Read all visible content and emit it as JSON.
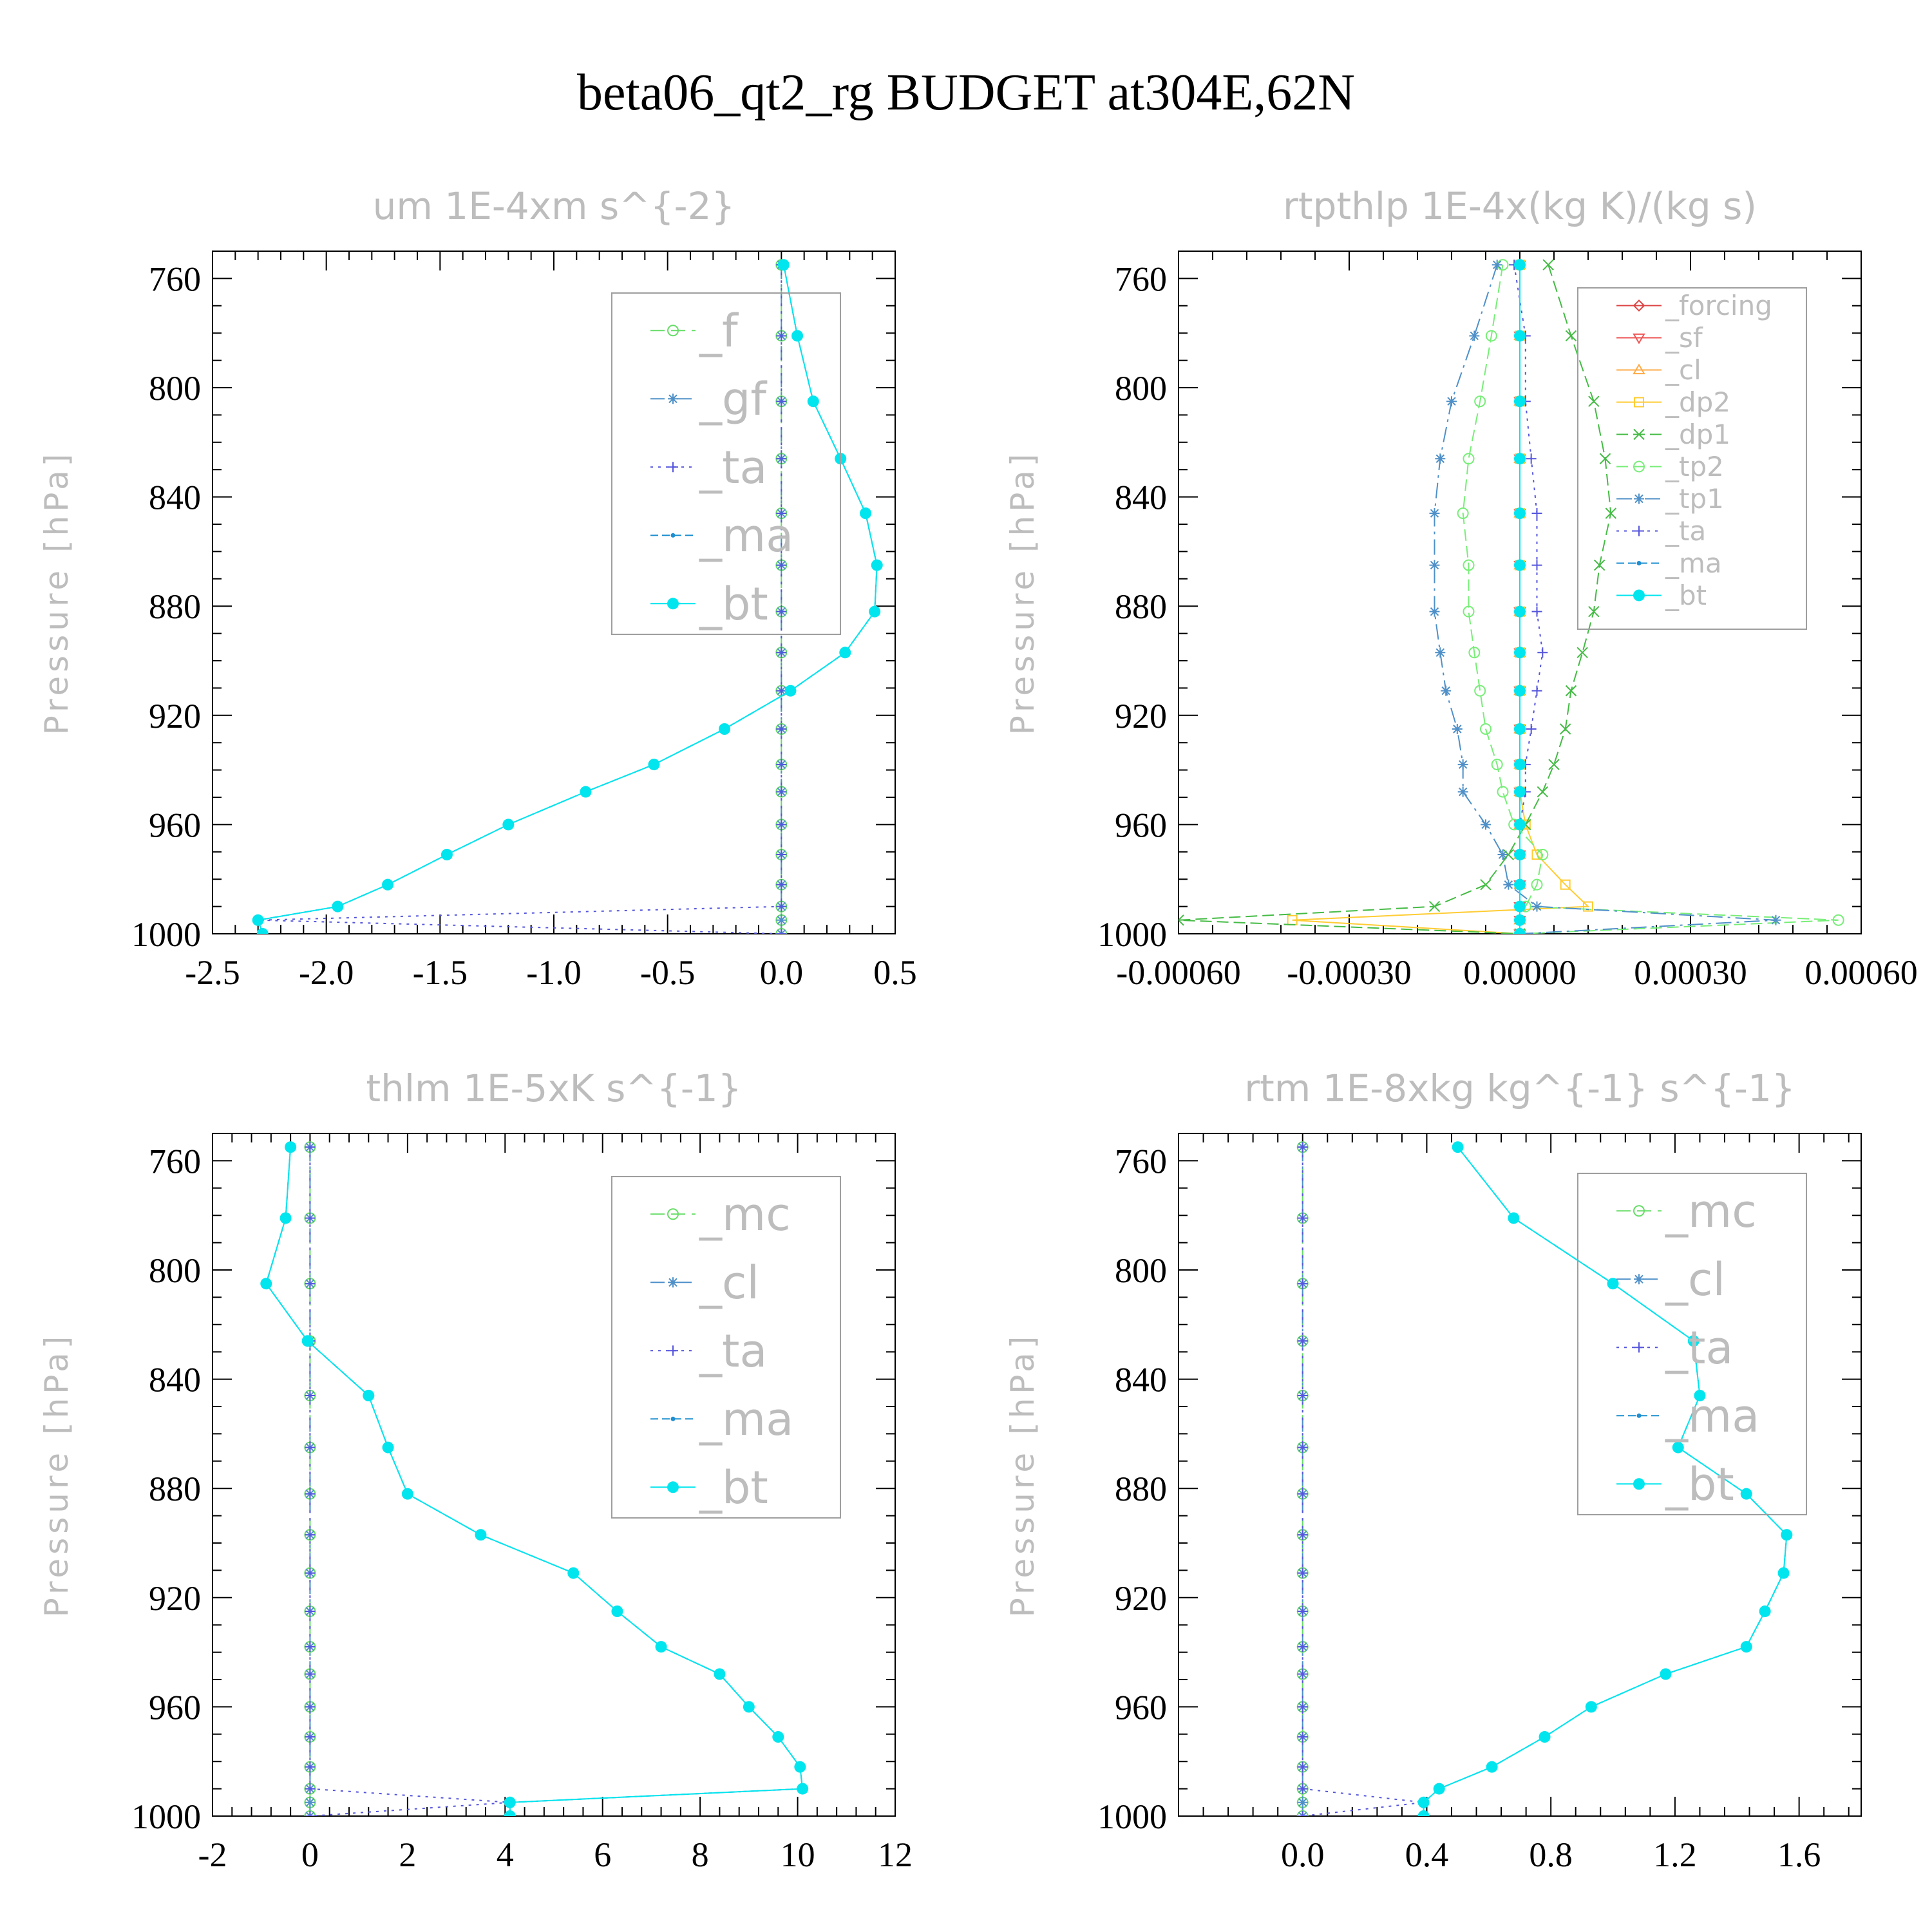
{
  "figure": {
    "title": "beta06_qt2_rg  BUDGET at304E,62N"
  },
  "chart_data": [
    {
      "type": "line",
      "title": "um   1E-4xm s^{-2}",
      "ylabel": "Pressure [hPa]",
      "xlim": [
        -2.5,
        0.5
      ],
      "ylim": [
        1000,
        750
      ],
      "xticks": [
        -2.5,
        -2.0,
        -1.5,
        -1.0,
        -0.5,
        0.0,
        0.5
      ],
      "xticklabels": [
        "-2.5",
        "-2.0",
        "-1.5",
        "-1.0",
        "-0.5",
        "0.0",
        "0.5"
      ],
      "yticks": [
        760,
        800,
        840,
        880,
        920,
        960,
        1000
      ],
      "yticklabels": [
        "760",
        "800",
        "840",
        "880",
        "920",
        "960",
        "1000"
      ],
      "pressure": [
        755,
        781,
        805,
        826,
        846,
        865,
        882,
        897,
        911,
        925,
        938,
        948,
        960,
        971,
        982,
        990,
        995,
        1000
      ],
      "series": [
        {
          "name": "_f",
          "color": "#66dd66",
          "dash": "22,10",
          "marker": "circle",
          "values": [
            0,
            0,
            0,
            0,
            0,
            0,
            0,
            0,
            0,
            0,
            0,
            0,
            0,
            0,
            0,
            0,
            0,
            0
          ]
        },
        {
          "name": "_gf",
          "color": "#4f90c8",
          "dash": "22,8,4,8",
          "marker": "star",
          "values": [
            0,
            0,
            0,
            0,
            0,
            0,
            0,
            0,
            0,
            0,
            0,
            0,
            0,
            0,
            0,
            0,
            0,
            0
          ]
        },
        {
          "name": "_ta",
          "color": "#5555dd",
          "dash": "4,8",
          "marker": "plus",
          "values": [
            0,
            0,
            0,
            0,
            0,
            0,
            0,
            0,
            0,
            0,
            0,
            0,
            0,
            0,
            0,
            0,
            -2.3,
            0
          ]
        },
        {
          "name": "_ma",
          "color": "#1e8fd0",
          "dash": "12,6",
          "marker": "dot",
          "values": [
            0.01,
            0.07,
            0.14,
            0.26,
            0.37,
            0.42,
            0.41,
            0.28,
            0.04,
            -0.25,
            -0.56,
            -0.86,
            -1.2,
            -1.47,
            -1.73,
            -1.95,
            -2.3,
            -2.28
          ]
        },
        {
          "name": "_bt",
          "color": "#00e5ee",
          "dash": "",
          "marker": "bigdot",
          "values": [
            0.01,
            0.07,
            0.14,
            0.26,
            0.37,
            0.42,
            0.41,
            0.28,
            0.04,
            -0.25,
            -0.56,
            -0.86,
            -1.2,
            -1.47,
            -1.73,
            -1.95,
            -2.3,
            -2.28
          ]
        }
      ],
      "legend": {
        "position": "top-right"
      }
    },
    {
      "type": "line",
      "title": "rtpthlp   1E-4x(kg K)/(kg s)",
      "ylabel": "Pressure [hPa]",
      "xlim": [
        -0.0006,
        0.0006
      ],
      "ylim": [
        1000,
        750
      ],
      "xticks": [
        -0.0006,
        -0.0003,
        0.0,
        0.0003,
        0.0006
      ],
      "xticklabels": [
        "-0.00060",
        "-0.00030",
        "0.00000",
        "0.00030",
        "0.00060"
      ],
      "yticks": [
        760,
        800,
        840,
        880,
        920,
        960,
        1000
      ],
      "yticklabels": [
        "760",
        "800",
        "840",
        "880",
        "920",
        "960",
        "1000"
      ],
      "pressure": [
        755,
        781,
        805,
        826,
        846,
        865,
        882,
        897,
        911,
        925,
        938,
        948,
        960,
        971,
        982,
        990,
        995,
        1000
      ],
      "series": [
        {
          "name": "_forcing",
          "color": "#dd4444",
          "dash": "",
          "marker": "diamond",
          "values": [
            0,
            0,
            0,
            0,
            0,
            0,
            0,
            0,
            0,
            0,
            0,
            0,
            0,
            0,
            0,
            0,
            0,
            0
          ]
        },
        {
          "name": "_sf",
          "color": "#ee5555",
          "dash": "",
          "marker": "tri-down",
          "values": [
            0,
            0,
            0,
            0,
            0,
            0,
            0,
            0,
            0,
            0,
            0,
            0,
            0,
            0,
            0,
            0,
            0,
            0
          ]
        },
        {
          "name": "_cl",
          "color": "#ffaa44",
          "dash": "",
          "marker": "tri-up",
          "values": [
            0,
            0,
            0,
            0,
            0,
            0,
            0,
            0,
            0,
            0,
            0,
            0,
            0,
            0,
            0,
            0,
            0,
            0
          ]
        },
        {
          "name": "_dp2",
          "color": "#ffcc33",
          "dash": "",
          "marker": "square",
          "values": [
            0,
            0,
            0,
            0,
            0,
            0,
            0,
            0,
            0,
            0,
            0,
            0,
            1e-05,
            3e-05,
            8e-05,
            0.00012,
            -0.0004,
            0
          ]
        },
        {
          "name": "_dp1",
          "color": "#44bb44",
          "dash": "18,8",
          "marker": "cross",
          "values": [
            5e-05,
            9e-05,
            0.00013,
            0.00015,
            0.00016,
            0.00014,
            0.00013,
            0.00011,
            9e-05,
            8e-05,
            6e-05,
            4e-05,
            1e-05,
            -2e-05,
            -6e-05,
            -0.00015,
            -0.0006,
            0
          ]
        },
        {
          "name": "_tp2",
          "color": "#77ee77",
          "dash": "18,8",
          "marker": "circle",
          "values": [
            -3e-05,
            -5e-05,
            -7e-05,
            -9e-05,
            -0.0001,
            -9e-05,
            -9e-05,
            -8e-05,
            -7e-05,
            -6e-05,
            -4e-05,
            -3e-05,
            -1e-05,
            4e-05,
            3e-05,
            1e-05,
            0.00056,
            0
          ]
        },
        {
          "name": "_tp1",
          "color": "#4f90c8",
          "dash": "24,8,4,8",
          "marker": "star",
          "values": [
            -4e-05,
            -8e-05,
            -0.00012,
            -0.00014,
            -0.00015,
            -0.00015,
            -0.00015,
            -0.00014,
            -0.00013,
            -0.00011,
            -0.0001,
            -0.0001,
            -6e-05,
            -3e-05,
            -2e-05,
            3e-05,
            0.00045,
            0
          ]
        },
        {
          "name": "_ta",
          "color": "#5555dd",
          "dash": "4,8",
          "marker": "plus",
          "values": [
            -1e-05,
            1e-05,
            1e-05,
            2e-05,
            3e-05,
            3e-05,
            3e-05,
            4e-05,
            3e-05,
            2e-05,
            1e-05,
            1e-05,
            0,
            0,
            0,
            0,
            0,
            0
          ]
        },
        {
          "name": "_ma",
          "color": "#1e8fd0",
          "dash": "12,6",
          "marker": "dot",
          "values": [
            0,
            0,
            0,
            0,
            0,
            0,
            0,
            0,
            0,
            0,
            0,
            0,
            0,
            0,
            0,
            0,
            0,
            0
          ]
        },
        {
          "name": "_bt",
          "color": "#00e5ee",
          "dash": "",
          "marker": "bigdot",
          "values": [
            0,
            0,
            0,
            0,
            0,
            0,
            0,
            0,
            0,
            0,
            0,
            0,
            0,
            0,
            0,
            0,
            0,
            0
          ]
        }
      ],
      "legend": {
        "position": "top-right"
      }
    },
    {
      "type": "line",
      "title": "thlm   1E-5xK s^{-1}",
      "ylabel": "Pressure [hPa]",
      "xlim": [
        -2,
        12
      ],
      "ylim": [
        1000,
        750
      ],
      "xticks": [
        -2,
        0,
        2,
        4,
        6,
        8,
        10,
        12
      ],
      "xticklabels": [
        "-2",
        "0",
        "2",
        "4",
        "6",
        "8",
        "10",
        "12"
      ],
      "yticks": [
        760,
        800,
        840,
        880,
        920,
        960,
        1000
      ],
      "yticklabels": [
        "760",
        "800",
        "840",
        "880",
        "920",
        "960",
        "1000"
      ],
      "pressure": [
        755,
        781,
        805,
        826,
        846,
        865,
        882,
        897,
        911,
        925,
        938,
        948,
        960,
        971,
        982,
        990,
        995,
        1000
      ],
      "series": [
        {
          "name": "_mc",
          "color": "#66dd66",
          "dash": "22,10",
          "marker": "circle",
          "values": [
            0,
            0,
            0,
            0,
            0,
            0,
            0,
            0,
            0,
            0,
            0,
            0,
            0,
            0,
            0,
            0,
            0,
            0
          ]
        },
        {
          "name": "_cl",
          "color": "#4f90c8",
          "dash": "22,8,4,8",
          "marker": "star",
          "values": [
            0,
            0,
            0,
            0,
            0,
            0,
            0,
            0,
            0,
            0,
            0,
            0,
            0,
            0,
            0,
            0,
            0,
            0
          ]
        },
        {
          "name": "_ta",
          "color": "#5555dd",
          "dash": "4,8",
          "marker": "plus",
          "values": [
            0,
            0,
            0,
            0,
            0,
            0,
            0,
            0,
            0,
            0,
            0,
            0,
            0,
            0,
            0,
            0,
            4.1,
            0
          ]
        },
        {
          "name": "_ma",
          "color": "#1e8fd0",
          "dash": "12,6",
          "marker": "dot",
          "values": [
            -0.4,
            -0.5,
            -0.9,
            -0.05,
            1.2,
            1.6,
            2.0,
            3.5,
            5.4,
            6.3,
            7.2,
            8.4,
            9.0,
            9.6,
            10.05,
            10.1,
            4.1,
            4.1
          ]
        },
        {
          "name": "_bt",
          "color": "#00e5ee",
          "dash": "",
          "marker": "bigdot",
          "values": [
            -0.4,
            -0.5,
            -0.9,
            -0.05,
            1.2,
            1.6,
            2.0,
            3.5,
            5.4,
            6.3,
            7.2,
            8.4,
            9.0,
            9.6,
            10.05,
            10.1,
            4.1,
            4.1
          ]
        }
      ],
      "legend": {
        "position": "top-right"
      }
    },
    {
      "type": "line",
      "title": "rtm   1E-8xkg kg^{-1} s^{-1}",
      "ylabel": "Pressure [hPa]",
      "xlim": [
        -0.4,
        1.8
      ],
      "ylim": [
        1000,
        750
      ],
      "xticks": [
        0.0,
        0.4,
        0.8,
        1.2,
        1.6
      ],
      "xticklabels": [
        "0.0",
        "0.4",
        "0.8",
        "1.2",
        "1.6"
      ],
      "yticks": [
        760,
        800,
        840,
        880,
        920,
        960,
        1000
      ],
      "yticklabels": [
        "760",
        "800",
        "840",
        "880",
        "920",
        "960",
        "1000"
      ],
      "pressure": [
        755,
        781,
        805,
        826,
        846,
        865,
        882,
        897,
        911,
        925,
        938,
        948,
        960,
        971,
        982,
        990,
        995,
        1000
      ],
      "series": [
        {
          "name": "_mc",
          "color": "#66dd66",
          "dash": "22,10",
          "marker": "circle",
          "values": [
            0,
            0,
            0,
            0,
            0,
            0,
            0,
            0,
            0,
            0,
            0,
            0,
            0,
            0,
            0,
            0,
            0,
            0
          ]
        },
        {
          "name": "_cl",
          "color": "#4f90c8",
          "dash": "22,8,4,8",
          "marker": "star",
          "values": [
            0,
            0,
            0,
            0,
            0,
            0,
            0,
            0,
            0,
            0,
            0,
            0,
            0,
            0,
            0,
            0,
            0,
            0
          ]
        },
        {
          "name": "_ta",
          "color": "#5555dd",
          "dash": "4,8",
          "marker": "plus",
          "values": [
            0,
            0,
            0,
            0,
            0,
            0,
            0,
            0,
            0,
            0,
            0,
            0,
            0,
            0,
            0,
            0,
            0.39,
            0
          ]
        },
        {
          "name": "_ma",
          "color": "#1e8fd0",
          "dash": "12,6",
          "marker": "dot",
          "values": [
            0.5,
            0.68,
            1.0,
            1.26,
            1.28,
            1.21,
            1.43,
            1.56,
            1.55,
            1.49,
            1.43,
            1.17,
            0.93,
            0.78,
            0.61,
            0.44,
            0.39,
            0.39
          ]
        },
        {
          "name": "_bt",
          "color": "#00e5ee",
          "dash": "",
          "marker": "bigdot",
          "values": [
            0.5,
            0.68,
            1.0,
            1.26,
            1.28,
            1.21,
            1.43,
            1.56,
            1.55,
            1.49,
            1.43,
            1.17,
            0.93,
            0.78,
            0.61,
            0.44,
            0.39,
            0.39
          ]
        }
      ],
      "legend": {
        "position": "top-right"
      }
    }
  ]
}
